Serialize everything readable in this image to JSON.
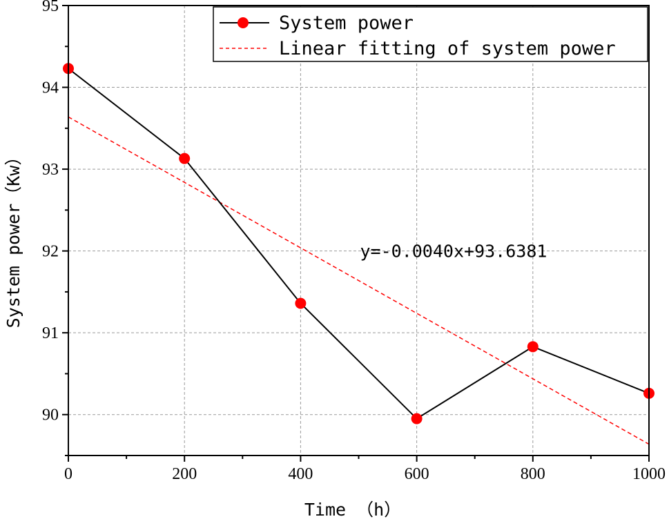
{
  "chart_data": {
    "type": "line",
    "xlabel": "Time （h）",
    "ylabel": "System power（Kw）",
    "xlim": [
      0,
      1000
    ],
    "ylim": [
      89.5,
      95
    ],
    "x_ticks": [
      0,
      200,
      400,
      600,
      800,
      1000
    ],
    "x_tick_labels": [
      "0",
      "200",
      "400",
      "600",
      "800",
      "1000"
    ],
    "y_ticks": [
      90,
      91,
      92,
      93,
      94,
      95
    ],
    "y_tick_labels": [
      "90",
      "91",
      "92",
      "93",
      "94",
      "95"
    ],
    "grid": true,
    "legend_position": "top-right",
    "series": [
      {
        "name": "System power",
        "style": "solid-line-with-markers",
        "color": "#000000",
        "marker_color": "#ff0000",
        "x": [
          0,
          200,
          400,
          600,
          800,
          1000
        ],
        "y": [
          94.23,
          93.13,
          91.36,
          89.95,
          90.83,
          90.26
        ]
      },
      {
        "name": "Linear fitting of system power",
        "style": "dashed-line",
        "color": "#ff0000",
        "x": [
          0,
          1000
        ],
        "y": [
          93.6381,
          89.6381
        ]
      }
    ],
    "annotation": {
      "text": "y=-0.0040x+93.6381",
      "x": 500,
      "y": 92
    }
  }
}
